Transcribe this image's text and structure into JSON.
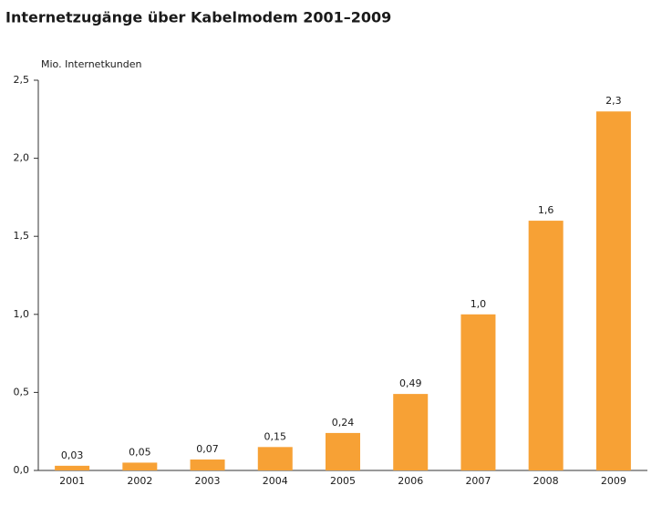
{
  "chart_data": {
    "type": "bar",
    "title": "Internetzugänge über Kabelmodem 2001–2009",
    "y_label": "Mio. Internetkunden",
    "categories": [
      "2001",
      "2002",
      "2003",
      "2004",
      "2005",
      "2006",
      "2007",
      "2008",
      "2009"
    ],
    "values": [
      0.03,
      0.05,
      0.07,
      0.15,
      0.24,
      0.49,
      1.0,
      1.6,
      2.3
    ],
    "value_labels": [
      "0,03",
      "0,05",
      "0,07",
      "0,15",
      "0,24",
      "0,49",
      "1,0",
      "1,6",
      "2,3"
    ],
    "color": "#f7a135",
    "ylim": [
      0,
      2.5
    ],
    "yticks": [
      {
        "value": 0,
        "label": "0,0"
      },
      {
        "value": 0.5,
        "label": "0,5"
      },
      {
        "value": 1.0,
        "label": "1,0"
      },
      {
        "value": 1.5,
        "label": "1,5"
      },
      {
        "value": 2.0,
        "label": "2,0"
      },
      {
        "value": 2.5,
        "label": "2,5"
      }
    ],
    "grid": false
  }
}
